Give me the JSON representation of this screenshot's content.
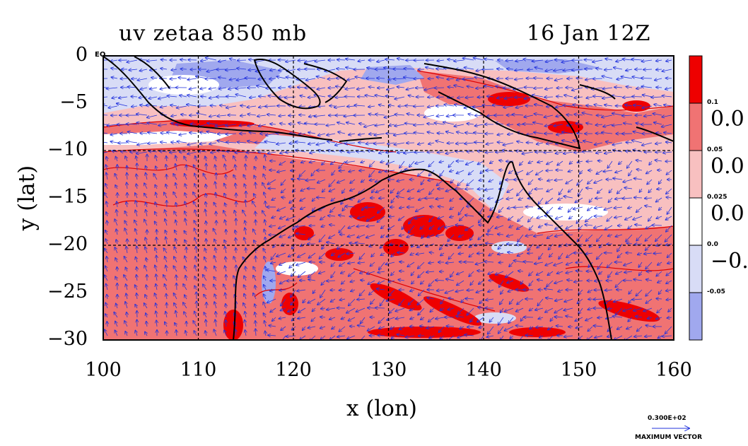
{
  "title_left": "uv zetaa 850 mb",
  "title_right": "16 Jan 12Z",
  "xlabel": "x (lon)",
  "ylabel": "y (lat)",
  "eq_label": "EQ",
  "x_ticks": [
    "100",
    "110",
    "120",
    "130",
    "140",
    "150",
    "160"
  ],
  "y_ticks": [
    "0",
    "−5",
    "−10",
    "−15",
    "−20",
    "−25",
    "−30"
  ],
  "colorbar": {
    "levels": [
      "0.1",
      "0.05",
      "0.025",
      "0.0",
      "-0.05"
    ],
    "big_labels": [
      "0.0",
      "0.0",
      "0.0",
      "−0."
    ],
    "colors": [
      "#ee0000",
      "#f07373",
      "#f8c0c0",
      "#ffffff",
      "#d8dcf6",
      "#a0a8ee"
    ]
  },
  "vector_key": {
    "value": "0.300E+02",
    "label": "MAXIMUM VECTOR"
  },
  "colors": {
    "vector": "#2233dd",
    "coast": "#000000",
    "grid": "#000000",
    "contour": "#dd0000"
  }
}
